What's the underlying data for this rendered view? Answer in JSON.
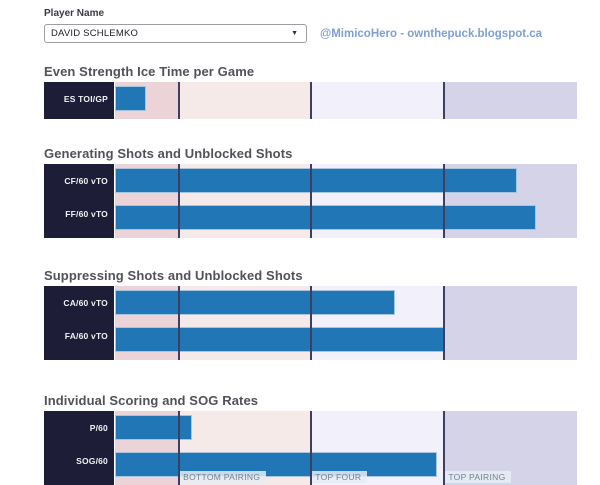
{
  "header": {
    "player_label": "Player Name",
    "player_name": "DAVID SCHLEMKO",
    "dropdown_arrow": "▼",
    "credit": "@MimicoHero - ownthepuck.blogspot.ca"
  },
  "colors": {
    "bar_fill": "#2176b5",
    "bar_border": "#a6c6df",
    "label_column_bg": "#1d1d38",
    "divider": "#3e3e60",
    "zone_below_bottom": "#ebd3d7",
    "zone_bottom_pairing": "#f5eae7",
    "zone_top_four": "#f2f1fb",
    "zone_top_pairing": "#d5d3e8",
    "credit_text": "#7e9fd0",
    "heading_text": "#515159"
  },
  "zones": {
    "widths_pct": [
      13.64,
      28.57,
      28.79,
      29.0
    ],
    "boundaries_pct": [
      13.64,
      42.21,
      71.0
    ],
    "label_lefts_pct": [
      14.1,
      42.7,
      71.5
    ],
    "labels": [
      "BOTTOM PAIRING",
      "TOP FOUR",
      "TOP PAIRING"
    ]
  },
  "chart_data": [
    {
      "type": "bar",
      "title": "Even Strength Ice Time per Game",
      "orientation": "horizontal",
      "axis": "percent of league scale (0-100), thresholds at 13.6 / 42.2 / 71.0",
      "rows": [
        {
          "label": "ES TOI/GP",
          "pct": 6.7
        }
      ]
    },
    {
      "type": "bar",
      "title": "Generating Shots and Unblocked Shots",
      "orientation": "horizontal",
      "rows": [
        {
          "label": "CF/60 vTO",
          "pct": 87.0
        },
        {
          "label": "FF/60 vTO",
          "pct": 91.1
        }
      ]
    },
    {
      "type": "bar",
      "title": "Suppressing Shots and Unblocked Shots",
      "orientation": "horizontal",
      "rows": [
        {
          "label": "CA/60 vTO",
          "pct": 60.6
        },
        {
          "label": "FA/60 vTO",
          "pct": 71.2
        }
      ]
    },
    {
      "type": "bar",
      "title": "Individual Scoring and SOG Rates",
      "orientation": "horizontal",
      "rows": [
        {
          "label": "P/60",
          "pct": 16.7
        },
        {
          "label": "SOG/60",
          "pct": 69.7
        }
      ],
      "zone_labels": [
        "BOTTOM PAIRING",
        "TOP FOUR",
        "TOP PAIRING"
      ]
    }
  ]
}
